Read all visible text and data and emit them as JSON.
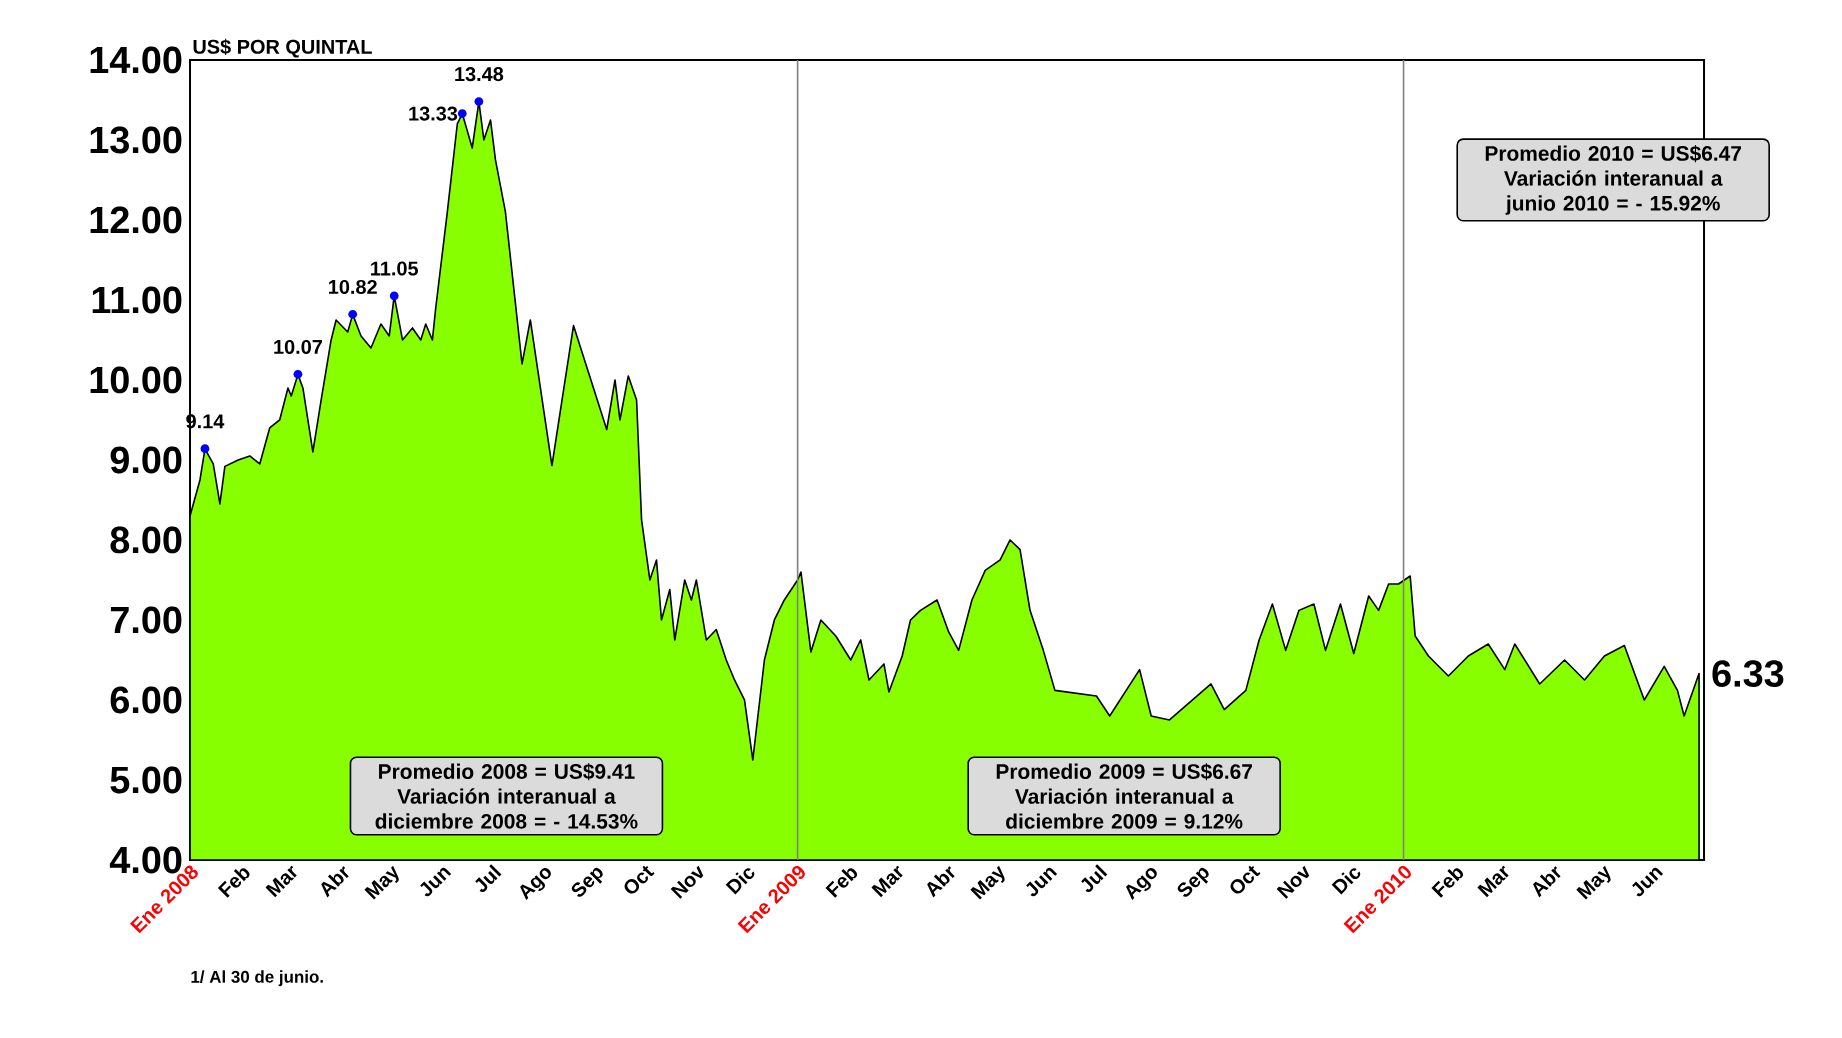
{
  "chart_data": {
    "type": "area",
    "ylabel": "US$ POR QUINTAL",
    "x": [
      "2008-01-01",
      "2008-01-07",
      "2008-01-10",
      "2008-01-15",
      "2008-01-19",
      "2008-01-22",
      "2008-01-30",
      "2008-02-06",
      "2008-02-12",
      "2008-02-18",
      "2008-02-24",
      "2008-02-29",
      "2008-03-02",
      "2008-03-06",
      "2008-03-09",
      "2008-03-15",
      "2008-03-20",
      "2008-03-26",
      "2008-03-29",
      "2008-04-05",
      "2008-04-08",
      "2008-04-13",
      "2008-04-19",
      "2008-04-25",
      "2008-04-30",
      "2008-05-03",
      "2008-05-08",
      "2008-05-14",
      "2008-05-19",
      "2008-05-22",
      "2008-05-26",
      "2008-05-28",
      "2008-06-04",
      "2008-06-10",
      "2008-06-13",
      "2008-06-19",
      "2008-06-23",
      "2008-06-26",
      "2008-06-30",
      "2008-07-03",
      "2008-07-09",
      "2008-07-19",
      "2008-07-24",
      "2008-08-06",
      "2008-08-19",
      "2008-09-08",
      "2008-09-13",
      "2008-09-16",
      "2008-09-21",
      "2008-09-26",
      "2008-09-29",
      "2008-10-04",
      "2008-10-08",
      "2008-10-11",
      "2008-10-16",
      "2008-10-19",
      "2008-10-25",
      "2008-10-29",
      "2008-11-01",
      "2008-11-07",
      "2008-11-13",
      "2008-11-19",
      "2008-11-24",
      "2008-11-30",
      "2008-12-05",
      "2008-12-12",
      "2008-12-18",
      "2008-12-24",
      "2009-01-01",
      "2009-01-03",
      "2009-01-09",
      "2009-01-15",
      "2009-01-24",
      "2009-02-02",
      "2009-02-08",
      "2009-02-13",
      "2009-02-22",
      "2009-02-25",
      "2009-03-05",
      "2009-03-10",
      "2009-03-16",
      "2009-03-26",
      "2009-04-02",
      "2009-04-08",
      "2009-04-16",
      "2009-04-24",
      "2009-05-03",
      "2009-05-09",
      "2009-05-15",
      "2009-05-21",
      "2009-05-29",
      "2009-06-05",
      "2009-06-30",
      "2009-07-08",
      "2009-07-26",
      "2009-08-02",
      "2009-08-13",
      "2009-09-07",
      "2009-09-15",
      "2009-09-28",
      "2009-10-06",
      "2009-10-14",
      "2009-10-22",
      "2009-10-30",
      "2009-11-08",
      "2009-11-15",
      "2009-11-24",
      "2009-12-02",
      "2009-12-11",
      "2009-12-17",
      "2009-12-23",
      "2009-12-29",
      "2010-01-05",
      "2010-01-08",
      "2010-01-16",
      "2010-01-28",
      "2010-02-09",
      "2010-02-21",
      "2010-03-03",
      "2010-03-09",
      "2010-03-24",
      "2010-04-08",
      "2010-04-20",
      "2010-05-02",
      "2010-05-14",
      "2010-05-26",
      "2010-06-07",
      "2010-06-15",
      "2010-06-19",
      "2010-06-28"
    ],
    "series": [
      {
        "color": "#88ff00",
        "values": [
          8.3,
          8.75,
          9.14,
          8.95,
          8.45,
          8.92,
          9.0,
          9.05,
          8.95,
          9.4,
          9.5,
          9.9,
          9.8,
          10.07,
          9.9,
          9.1,
          9.75,
          10.5,
          10.75,
          10.6,
          10.82,
          10.55,
          10.4,
          10.7,
          10.55,
          11.05,
          10.5,
          10.65,
          10.5,
          10.7,
          10.5,
          10.9,
          12.1,
          13.2,
          13.33,
          12.9,
          13.48,
          13.0,
          13.25,
          12.75,
          12.1,
          10.2,
          10.75,
          8.93,
          10.68,
          9.38,
          10.0,
          9.5,
          10.05,
          9.75,
          8.25,
          7.5,
          7.75,
          7.0,
          7.38,
          6.75,
          7.5,
          7.25,
          7.5,
          6.75,
          6.88,
          6.5,
          6.25,
          6.0,
          5.25,
          6.5,
          7.0,
          7.25,
          7.5,
          7.6,
          6.6,
          7.0,
          6.8,
          6.5,
          6.75,
          6.25,
          6.45,
          6.1,
          6.55,
          7.0,
          7.12,
          7.25,
          6.85,
          6.62,
          7.25,
          7.62,
          7.75,
          8.0,
          7.88,
          7.12,
          6.62,
          6.12,
          6.05,
          5.8,
          6.38,
          5.8,
          5.75,
          6.2,
          5.88,
          6.12,
          6.75,
          7.2,
          6.62,
          7.12,
          7.2,
          6.62,
          7.2,
          6.58,
          7.3,
          7.12,
          7.45,
          7.45,
          7.55,
          6.8,
          6.55,
          6.3,
          6.55,
          6.7,
          6.38,
          6.7,
          6.2,
          6.5,
          6.25,
          6.55,
          6.68,
          6.0,
          6.42,
          6.12,
          5.8,
          6.33
        ]
      }
    ],
    "xlim": [
      "2008-01-01",
      "2010-07-01"
    ],
    "xticks": [
      {
        "value": "2008-01-01",
        "label": "Ene 2008"
      },
      {
        "value": "2008-02-01",
        "label": "Feb"
      },
      {
        "value": "2008-03-01",
        "label": "Mar"
      },
      {
        "value": "2008-04-01",
        "label": "Abr"
      },
      {
        "value": "2008-05-01",
        "label": "May"
      },
      {
        "value": "2008-06-01",
        "label": "Jun"
      },
      {
        "value": "2008-07-01",
        "label": "Jul"
      },
      {
        "value": "2008-08-01",
        "label": "Ago"
      },
      {
        "value": "2008-09-01",
        "label": "Sep"
      },
      {
        "value": "2008-10-01",
        "label": "Oct"
      },
      {
        "value": "2008-11-01",
        "label": "Nov"
      },
      {
        "value": "2008-12-01",
        "label": "Dic"
      },
      {
        "value": "2009-01-01",
        "label": "Ene 2009"
      },
      {
        "value": "2009-02-01",
        "label": "Feb"
      },
      {
        "value": "2009-03-01",
        "label": "Mar"
      },
      {
        "value": "2009-04-01",
        "label": "Abr"
      },
      {
        "value": "2009-05-01",
        "label": "May"
      },
      {
        "value": "2009-06-01",
        "label": "Jun"
      },
      {
        "value": "2009-07-01",
        "label": "Jul"
      },
      {
        "value": "2009-08-01",
        "label": "Ago"
      },
      {
        "value": "2009-09-01",
        "label": "Sep"
      },
      {
        "value": "2009-10-01",
        "label": "Oct"
      },
      {
        "value": "2009-11-01",
        "label": "Nov"
      },
      {
        "value": "2009-12-01",
        "label": "Dic"
      },
      {
        "value": "2010-01-01",
        "label": "Ene 2010"
      },
      {
        "value": "2010-02-01",
        "label": "Feb"
      },
      {
        "value": "2010-03-01",
        "label": "Mar"
      },
      {
        "value": "2010-04-01",
        "label": "Abr"
      },
      {
        "value": "2010-05-01",
        "label": "May"
      },
      {
        "value": "2010-06-01",
        "label": "Jun"
      }
    ],
    "ylim": [
      4,
      14
    ],
    "yticks": [
      {
        "value": 4,
        "label": "4.00"
      },
      {
        "value": 5,
        "label": "5.00"
      },
      {
        "value": 6,
        "label": "6.00"
      },
      {
        "value": 7,
        "label": "7.00"
      },
      {
        "value": 8,
        "label": "8.00"
      },
      {
        "value": 9,
        "label": "9.00"
      },
      {
        "value": 10,
        "label": "10.00"
      },
      {
        "value": 11,
        "label": "11.00"
      },
      {
        "value": 12,
        "label": "12.00"
      },
      {
        "value": 13,
        "label": "13.00"
      },
      {
        "value": 14,
        "label": "14.00"
      }
    ],
    "ref_lines": [
      {
        "axis": "x",
        "value": "2009-01-01",
        "color": "#808080"
      },
      {
        "axis": "x",
        "value": "2010-01-01",
        "color": "#808080"
      }
    ],
    "annotations": [
      {
        "text": "9.14",
        "x": "2008-01-10",
        "y": 9.14
      },
      {
        "text": "10.07",
        "x": "2008-03-06",
        "y": 10.07
      },
      {
        "text": "10.82",
        "x": "2008-04-08",
        "y": 10.82
      },
      {
        "text": "11.05",
        "x": "2008-05-03",
        "y": 11.05
      },
      {
        "text": "13.33",
        "x": "2008-06-13",
        "y": 13.33
      },
      {
        "text": "13.48",
        "x": "2008-06-23",
        "y": 13.48
      },
      {
        "text": "6.33",
        "x": "2010-06-28",
        "y": 6.33
      },
      "Promedio 2008 = US$9.41 Variación interanual a diciembre 2008 = - 14.53%",
      "Promedio 2009 = US$6.67 Variación interanual a diciembre 2009 = 9.12%",
      "Promedio 2010 = US$6.47 Variación interanual a junio 2010 =  - 15.92%",
      "1/ Al 30 de junio."
    ]
  }
}
